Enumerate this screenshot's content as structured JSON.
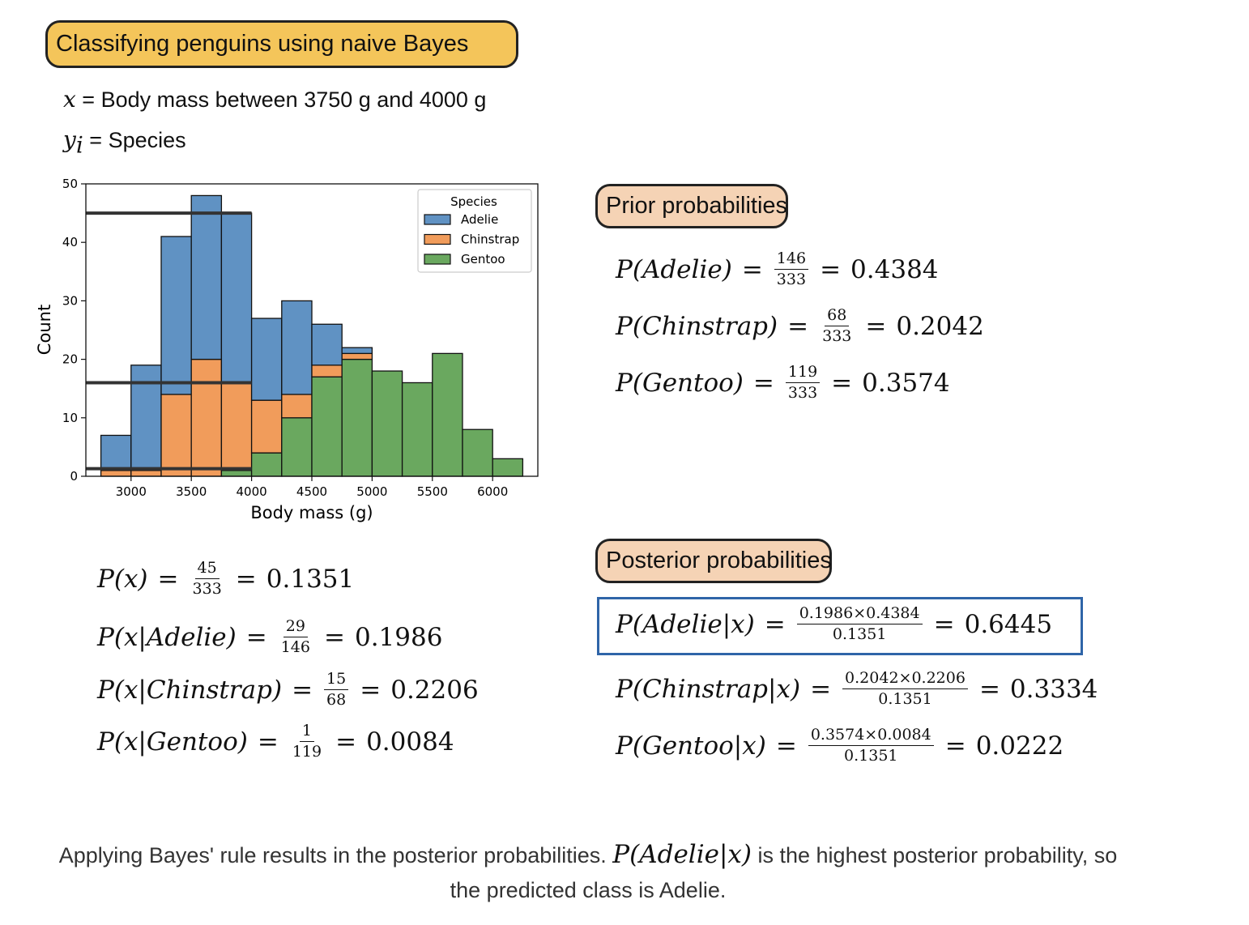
{
  "title": "Classifying penguins using naive Bayes",
  "definitions": {
    "x_symbol": "x",
    "x_text": " = Body mass between 3750 g and 4000 g",
    "y_symbol": "y",
    "y_sub": "i",
    "y_text": " = Species"
  },
  "sections": {
    "prior": "Prior probabilities",
    "posterior": "Posterior probabilities"
  },
  "likelihoods": [
    {
      "lhs": "P(x)",
      "num": "45",
      "den": "333",
      "result": "0.1351"
    },
    {
      "lhs": "P(x|Adelie)",
      "num": "29",
      "den": "146",
      "result": "0.1986"
    },
    {
      "lhs": "P(x|Chinstrap)",
      "num": "15",
      "den": "68",
      "result": "0.2206"
    },
    {
      "lhs": "P(x|Gentoo)",
      "num": "1",
      "den": "119",
      "result": "0.0084"
    }
  ],
  "priors": [
    {
      "lhs": "P(Adelie)",
      "num": "146",
      "den": "333",
      "result": "0.4384"
    },
    {
      "lhs": "P(Chinstrap)",
      "num": "68",
      "den": "333",
      "result": "0.2042"
    },
    {
      "lhs": "P(Gentoo)",
      "num": "119",
      "den": "333",
      "result": "0.3574"
    }
  ],
  "posteriors": [
    {
      "lhs": "P(Adelie|x)",
      "num": "0.1986×0.4384",
      "den": "0.1351",
      "result": "0.6445",
      "highlighted": true
    },
    {
      "lhs": "P(Chinstrap|x)",
      "num": "0.2042×0.2206",
      "den": "0.1351",
      "result": "0.3334"
    },
    {
      "lhs": "P(Gentoo|x)",
      "num": "0.3574×0.0084",
      "den": "0.1351",
      "result": "0.0222"
    }
  ],
  "caption": {
    "before": "Applying Bayes' rule results in the posterior probabilities. ",
    "math": "P(Adelie|x)",
    "after": " is the highest posterior probability, so the predicted class is Adelie."
  },
  "chart_data": {
    "type": "bar",
    "stacked": true,
    "xlabel": "Body mass (g)",
    "ylabel": "Count",
    "xlim": [
      2625,
      6375
    ],
    "ylim": [
      0,
      50
    ],
    "xticks": [
      3000,
      3500,
      4000,
      4500,
      5000,
      5500,
      6000
    ],
    "yticks": [
      0,
      10,
      20,
      30,
      40,
      50
    ],
    "bin_edges": [
      2750,
      3000,
      3250,
      3500,
      3750,
      4000,
      4250,
      4500,
      4750,
      5000,
      5250,
      5500,
      5750,
      6000,
      6250
    ],
    "series": [
      {
        "name": "Gentoo",
        "color": "#6aa85f",
        "values": [
          0,
          0,
          0,
          0,
          1,
          4,
          10,
          17,
          20,
          18,
          16,
          21,
          8,
          3
        ]
      },
      {
        "name": "Chinstrap",
        "color": "#f19c5b",
        "values": [
          1,
          1,
          14,
          20,
          15,
          9,
          4,
          2,
          1,
          0,
          0,
          0,
          0,
          0
        ]
      },
      {
        "name": "Adelie",
        "color": "#6092c3",
        "values": [
          6,
          18,
          27,
          28,
          29,
          14,
          16,
          7,
          1,
          0,
          0,
          0,
          0,
          0
        ]
      }
    ],
    "legend": {
      "title": "Species",
      "entries": [
        "Adelie",
        "Chinstrap",
        "Gentoo"
      ],
      "placement": "top-right"
    },
    "reference_lines": [
      {
        "y": 45,
        "x_range": [
          2625,
          4000
        ]
      },
      {
        "y": 16,
        "x_range": [
          2625,
          4000
        ]
      },
      {
        "y": 1.3,
        "x_range": [
          2625,
          4000
        ]
      }
    ],
    "grid": false
  }
}
